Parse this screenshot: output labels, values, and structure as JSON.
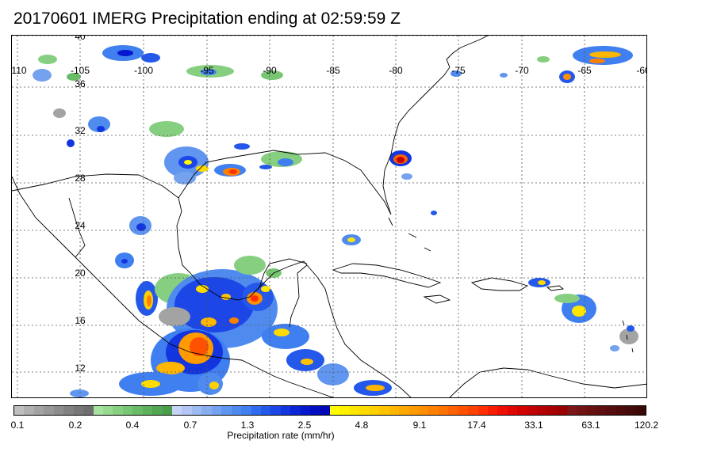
{
  "title": "20170601 IMERG Precipitation ending at 02:59:59 Z",
  "map": {
    "longitude_labels": [
      "-110",
      "-105",
      "-100",
      "-95",
      "-90",
      "-85",
      "-80",
      "-75",
      "-70",
      "-65",
      "-60"
    ],
    "latitude_labels": [
      "40",
      "36",
      "32",
      "28",
      "24",
      "20",
      "16",
      "12"
    ],
    "grid_style": "dotted",
    "coastline_color": "#000000",
    "extent": {
      "lon_min": -110,
      "lon_max": -60,
      "lat_min": 10.2,
      "lat_max": 40
    }
  },
  "colorbar": {
    "title": "Precipitation rate (mm/hr)",
    "tick_labels": [
      "0.1",
      "0.2",
      "0.4",
      "0.7",
      "1.3",
      "2.5",
      "4.8",
      "9.1",
      "17.4",
      "33.1",
      "63.1",
      "120.2"
    ],
    "colors": [
      "#bfbfbf",
      "#b0b0b0",
      "#a3a3a3",
      "#979797",
      "#8c8c8c",
      "#818181",
      "#777777",
      "#6e6e6e",
      "#a7e2a0",
      "#97d98f",
      "#87cf80",
      "#78c572",
      "#6abb65",
      "#5eb15a",
      "#54a752",
      "#4a9d4b",
      "#c7d2f7",
      "#b2c5f5",
      "#9dbaf2",
      "#88aef0",
      "#74a2ef",
      "#6096ef",
      "#4f8bef",
      "#3f7ff0",
      "#2f6bee",
      "#2458ea",
      "#1c46e6",
      "#1235e0",
      "#0a25d8",
      "#0518ce",
      "#020dc2",
      "#0005b6",
      "#fffc00",
      "#fff100",
      "#ffe600",
      "#ffdb00",
      "#ffd000",
      "#ffc300",
      "#ffb600",
      "#ffa900",
      "#ff9b00",
      "#ff8e00",
      "#ff8000",
      "#ff7100",
      "#ff6200",
      "#ff5200",
      "#ff4100",
      "#ff2f00",
      "#f81c00",
      "#ed1000",
      "#e00700",
      "#d20100",
      "#c40000",
      "#b60000",
      "#a80000",
      "#9a0000",
      "#7d1616",
      "#731313",
      "#691111",
      "#5f0f0f",
      "#560d0d",
      "#4d0b0b",
      "#440909",
      "#3c0707"
    ]
  }
}
